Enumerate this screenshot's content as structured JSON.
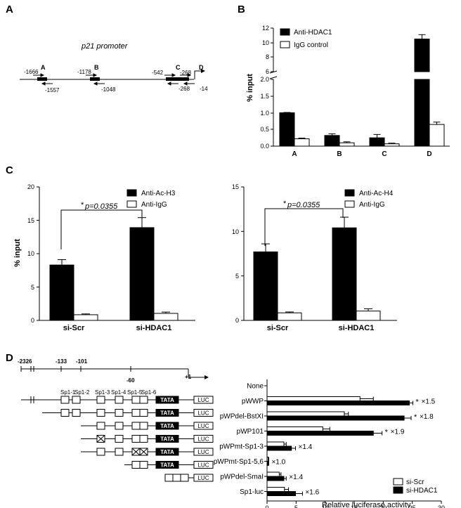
{
  "panels": {
    "A": "A",
    "B": "B",
    "C": "C",
    "D": "D"
  },
  "panelA": {
    "title": "p21 promoter",
    "positions": {
      "p1666": "-1666",
      "p1557": "-1557",
      "p1178": "-1178",
      "p1048": "-1048",
      "p542": "-542",
      "p268a": "-268",
      "p268b": "-268",
      "p14": "-14"
    },
    "regions": {
      "A": "A",
      "B": "B",
      "C": "C",
      "D": "D"
    }
  },
  "chart_data": [
    {
      "type": "bar",
      "panel": "B",
      "ylabel": "% input",
      "categories": [
        "A",
        "B",
        "C",
        "D"
      ],
      "ylim_lower": [
        0,
        2.0
      ],
      "ylim_upper": [
        6,
        12
      ],
      "yticks_lower": [
        "0.0",
        "0.5",
        "1.0",
        "1.5",
        "2.0"
      ],
      "yticks_upper": [
        "6",
        "8",
        "10",
        "12"
      ],
      "series": [
        {
          "name": "Anti-HDAC1",
          "color": "#000000",
          "values": [
            1.0,
            0.32,
            0.25,
            10.5
          ],
          "errors": [
            0.01,
            0.05,
            0.1,
            0.6
          ]
        },
        {
          "name": "IgG control",
          "color": "#ffffff",
          "values": [
            0.22,
            0.1,
            0.07,
            0.65
          ],
          "errors": [
            0.02,
            0.03,
            0.02,
            0.07
          ]
        }
      ]
    },
    {
      "type": "bar",
      "panel": "C-left",
      "ylabel": "% input",
      "categories": [
        "si-Scr",
        "si-HDAC1"
      ],
      "ylim": [
        0,
        20
      ],
      "yticks": [
        "0",
        "5",
        "10",
        "15",
        "20"
      ],
      "annotation": "p=0.0355",
      "annotation_star": "*",
      "series": [
        {
          "name": "Anti-Ac-H3",
          "color": "#000000",
          "values": [
            8.3,
            13.9
          ],
          "errors": [
            0.8,
            1.5
          ]
        },
        {
          "name": "Anti-IgG",
          "color": "#ffffff",
          "values": [
            0.85,
            1.05
          ],
          "errors": [
            0.12,
            0.2
          ]
        }
      ]
    },
    {
      "type": "bar",
      "panel": "C-right",
      "ylabel": "",
      "categories": [
        "si-Scr",
        "si-HDAC1"
      ],
      "ylim": [
        0,
        15
      ],
      "yticks": [
        "0",
        "5",
        "10",
        "15"
      ],
      "annotation": "p=0.0355",
      "annotation_star": "*",
      "series": [
        {
          "name": "Anti-Ac-H4",
          "color": "#000000",
          "values": [
            7.7,
            10.4
          ],
          "errors": [
            0.9,
            1.2
          ]
        },
        {
          "name": "Anti-IgG",
          "color": "#ffffff",
          "values": [
            0.85,
            1.05
          ],
          "errors": [
            0.1,
            0.25
          ]
        }
      ]
    },
    {
      "type": "bar",
      "orientation": "horizontal",
      "panel": "D-right",
      "xlabel": "Relative luciferase activity",
      "xlim": [
        0,
        30
      ],
      "xticks": [
        "0",
        "5",
        "10",
        "15",
        "20",
        "25",
        "30"
      ],
      "categories": [
        "None",
        "pWWP",
        "pWPdel-BstXI",
        "pWP101",
        "pWPmt-Sp1-3",
        "pWPmt-Sp1-5,6",
        "pWPdel-SmaI",
        "Sp1-luc"
      ],
      "fold_labels": [
        "",
        "×1.5",
        "×1.8",
        "×1.9",
        "×1.4",
        "×1.0",
        "×1.4",
        "×1.6"
      ],
      "stars": [
        false,
        true,
        true,
        true,
        false,
        false,
        false,
        false
      ],
      "star_symbol": "*",
      "series": [
        {
          "name": "si-Scr",
          "color": "#ffffff",
          "values": [
            0,
            16,
            13.3,
            9.6,
            2.9,
            0.2,
            2.1,
            3.0
          ],
          "errors": [
            0,
            2.3,
            0.7,
            1.2,
            0.4,
            0.1,
            0.3,
            0.7
          ]
        },
        {
          "name": "si-HDAC1",
          "color": "#000000",
          "values": [
            0,
            24.5,
            23.6,
            18.3,
            4.2,
            0.2,
            2.9,
            4.9
          ],
          "errors": [
            0,
            0.6,
            1.2,
            1.5,
            0.7,
            0.1,
            0.4,
            1.2
          ]
        }
      ]
    }
  ],
  "panelD": {
    "positions": {
      "p2326": "-2326",
      "p133": "-133",
      "p101": "-101",
      "p60": "-60",
      "p1": "+1"
    },
    "sites": [
      "Sp1-1",
      "Sp1-2",
      "Sp1-3",
      "Sp1-4",
      "Sp1-5",
      "Sp1-6"
    ],
    "tata": "TATA",
    "luc": "LUC"
  }
}
